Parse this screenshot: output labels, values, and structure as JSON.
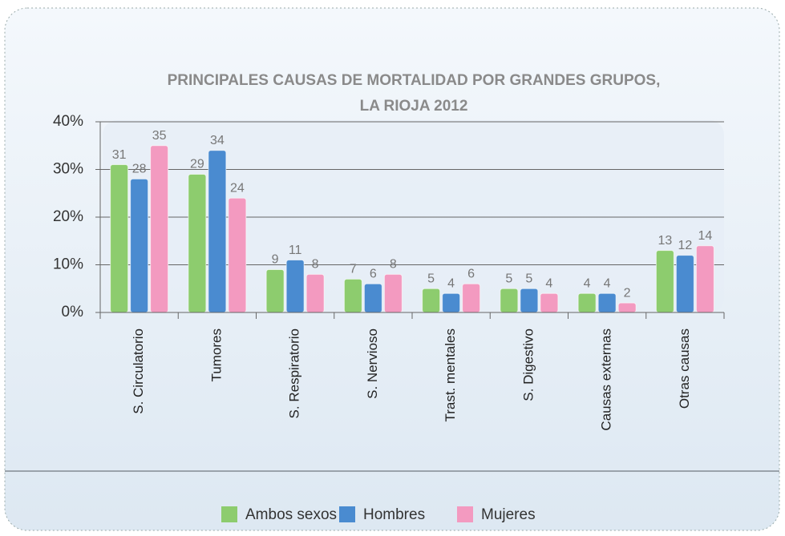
{
  "chart_data": {
    "type": "bar",
    "title": [
      "PRINCIPALES CAUSAS DE MORTALIDAD POR GRANDES GRUPOS,",
      "LA RIOJA 2012"
    ],
    "categories": [
      "S. Circulatorio",
      "Tumores",
      "S. Respiratorio",
      "S. Nervioso",
      "Trast. mentales",
      "S. Digestivo",
      "Causas externas",
      "Otras causas"
    ],
    "series": [
      {
        "name": "Ambos sexos",
        "color": "#8dcc6e",
        "values": [
          31,
          29,
          9,
          7,
          5,
          5,
          4,
          13
        ]
      },
      {
        "name": "Hombres",
        "color": "#4a8bd0",
        "values": [
          28,
          34,
          11,
          6,
          4,
          5,
          4,
          12
        ]
      },
      {
        "name": "Mujeres",
        "color": "#f39ac0",
        "values": [
          35,
          24,
          8,
          8,
          6,
          4,
          2,
          14
        ]
      }
    ],
    "ylim": [
      0,
      40
    ],
    "yticks": [
      {
        "value": 0,
        "label": "0%"
      },
      {
        "value": 10,
        "label": "10%"
      },
      {
        "value": 20,
        "label": "20%"
      },
      {
        "value": 30,
        "label": "30%"
      },
      {
        "value": 40,
        "label": "40%"
      }
    ],
    "grid": true,
    "legend": "bottom"
  }
}
